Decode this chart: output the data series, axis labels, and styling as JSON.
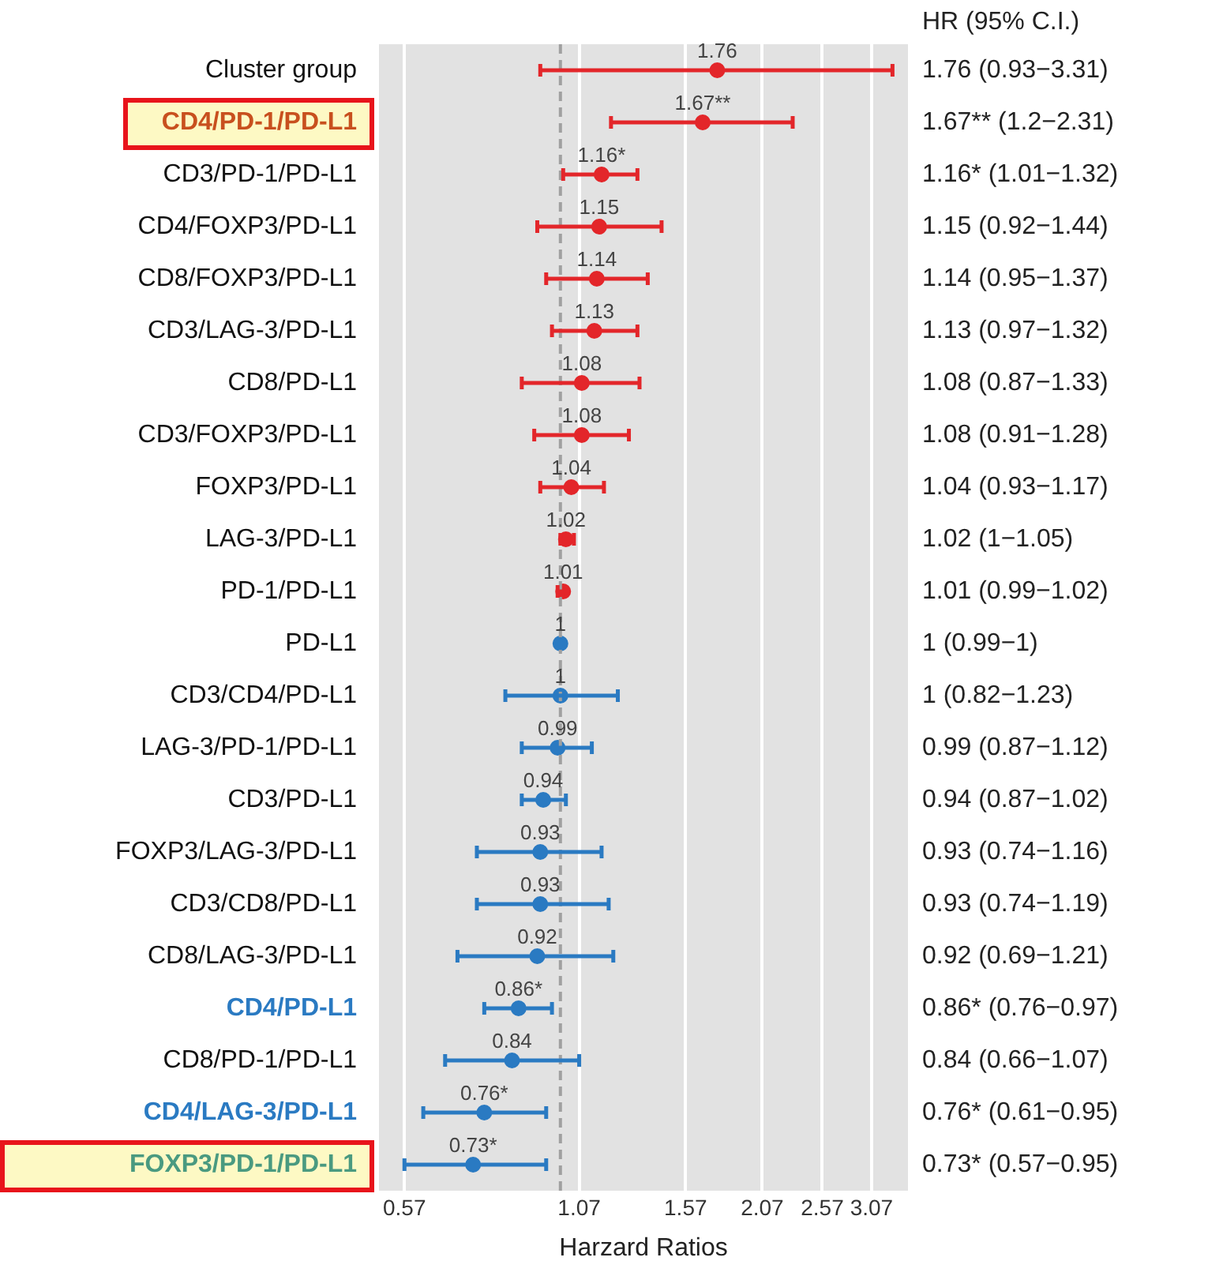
{
  "chart_data": {
    "type": "scatter",
    "orientation": "horizontal",
    "xlabel": "Harzard Ratios",
    "categories": [
      "Cluster group",
      "CD4/PD-1/PD-L1",
      "CD3/PD-1/PD-L1",
      "CD4/FOXP3/PD-L1",
      "CD8/FOXP3/PD-L1",
      "CD3/LAG-3/PD-L1",
      "CD8/PD-L1",
      "CD3/FOXP3/PD-L1",
      "FOXP3/PD-L1",
      "LAG-3/PD-L1",
      "PD-1/PD-L1",
      "PD-L1",
      "CD3/CD4/PD-L1",
      "LAG-3/PD-1/PD-L1",
      "CD3/PD-L1",
      "FOXP3/LAG-3/PD-L1",
      "CD3/CD8/PD-L1",
      "CD8/LAG-3/PD-L1",
      "CD4/PD-L1",
      "CD8/PD-1/PD-L1",
      "CD4/LAG-3/PD-L1",
      "FOXP3/PD-1/PD-L1"
    ],
    "values": [
      1.76,
      1.67,
      1.16,
      1.15,
      1.14,
      1.13,
      1.08,
      1.08,
      1.04,
      1.02,
      1.01,
      1,
      1,
      0.99,
      0.94,
      0.93,
      0.93,
      0.92,
      0.86,
      0.84,
      0.76,
      0.73
    ],
    "errors": [
      [
        0.93,
        3.31
      ],
      [
        1.2,
        2.31
      ],
      [
        1.01,
        1.32
      ],
      [
        0.92,
        1.44
      ],
      [
        0.95,
        1.37
      ],
      [
        0.97,
        1.32
      ],
      [
        0.87,
        1.33
      ],
      [
        0.91,
        1.28
      ],
      [
        0.93,
        1.17
      ],
      [
        1,
        1.05
      ],
      [
        0.99,
        1.02
      ],
      [
        0.99,
        1
      ],
      [
        0.82,
        1.23
      ],
      [
        0.87,
        1.12
      ],
      [
        0.87,
        1.02
      ],
      [
        0.74,
        1.16
      ],
      [
        0.74,
        1.19
      ],
      [
        0.69,
        1.21
      ],
      [
        0.76,
        0.97
      ],
      [
        0.66,
        1.07
      ],
      [
        0.61,
        0.95
      ],
      [
        0.57,
        0.95
      ]
    ],
    "value_labels": [
      "1.76",
      "1.67**",
      "1.16*",
      "1.15",
      "1.14",
      "1.13",
      "1.08",
      "1.08",
      "1.04",
      "1.02",
      "1.01",
      "1",
      "1",
      "0.99",
      "0.94",
      "0.93",
      "0.93",
      "0.92",
      "0.86*",
      "0.84",
      "0.76*",
      "0.73*"
    ],
    "colors": [
      "#e3262a",
      "#e3262a",
      "#e3262a",
      "#e3262a",
      "#e3262a",
      "#e3262a",
      "#e3262a",
      "#e3262a",
      "#e3262a",
      "#e3262a",
      "#e3262a",
      "#2a7ac2",
      "#2a7ac2",
      "#2a7ac2",
      "#2a7ac2",
      "#2a7ac2",
      "#2a7ac2",
      "#2a7ac2",
      "#2a7ac2",
      "#2a7ac2",
      "#2a7ac2",
      "#2a7ac2"
    ],
    "annotations": [
      "HR (95% C.I.)",
      "1.76 (0.93−3.31)",
      "1.67** (1.2−2.31)",
      "1.16* (1.01−1.32)",
      "1.15 (0.92−1.44)",
      "1.14 (0.95−1.37)",
      "1.13 (0.97−1.32)",
      "1.08 (0.87−1.33)",
      "1.08 (0.91−1.28)",
      "1.04 (0.93−1.17)",
      "1.02 (1−1.05)",
      "1.01 (0.99−1.02)",
      "1 (0.99−1)",
      "1 (0.82−1.23)",
      "0.99 (0.87−1.12)",
      "0.94 (0.87−1.02)",
      "0.93 (0.74−1.16)",
      "0.93 (0.74−1.19)",
      "0.92 (0.69−1.21)",
      "0.86* (0.76−0.97)",
      "0.84 (0.66−1.07)",
      "0.76* (0.61−0.95)",
      "0.73* (0.57−0.95)"
    ],
    "ref_lines": [
      {
        "axis": "x",
        "value": 1,
        "color": "#a0a0a0",
        "line_style": "dashed"
      }
    ],
    "xlim": [
      0.52,
      3.5
    ],
    "xticks": [
      0.57,
      1.07,
      1.57,
      2.07,
      2.57,
      3.07
    ],
    "log": "x",
    "grid": "x",
    "legend": false,
    "marker": "circle"
  }
}
